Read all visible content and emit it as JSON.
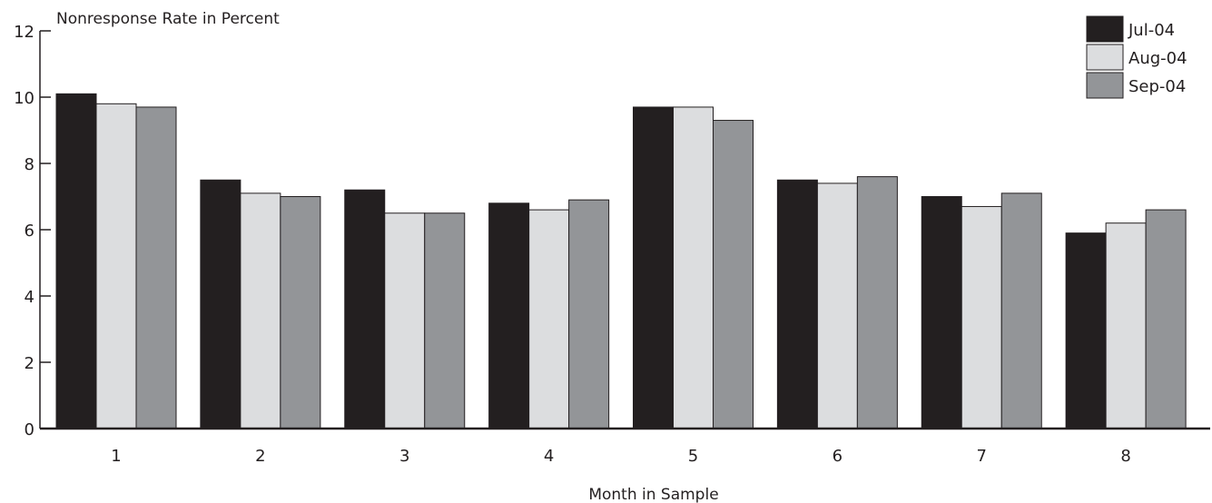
{
  "chart_data": {
    "type": "bar",
    "ylabel": "Nonresponse Rate in Percent",
    "xlabel": "Month in Sample",
    "categories": [
      "1",
      "2",
      "3",
      "4",
      "5",
      "6",
      "7",
      "8"
    ],
    "ylim": [
      0,
      12
    ],
    "yticks": [
      0,
      2,
      4,
      6,
      8,
      10,
      12
    ],
    "legend_position": "top-right",
    "grid": false,
    "series": [
      {
        "name": "Jul-04",
        "color": "#231f20",
        "values": [
          10.1,
          7.5,
          7.2,
          6.8,
          9.7,
          7.5,
          7.0,
          5.9
        ]
      },
      {
        "name": "Aug-04",
        "color": "#dcdddf",
        "values": [
          9.8,
          7.1,
          6.5,
          6.6,
          9.7,
          7.4,
          6.7,
          6.2
        ]
      },
      {
        "name": "Sep-04",
        "color": "#939598",
        "values": [
          9.7,
          7.0,
          6.5,
          6.9,
          9.3,
          7.6,
          7.1,
          6.6
        ]
      }
    ]
  }
}
